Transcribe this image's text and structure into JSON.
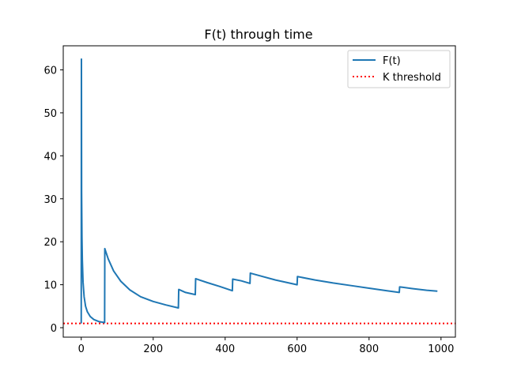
{
  "chart_data": {
    "type": "line",
    "title": "F(t) through time",
    "xlabel": "",
    "ylabel": "",
    "xlim": [
      -50,
      1040
    ],
    "ylim": [
      -2.2,
      65.6
    ],
    "xticks": [
      0,
      200,
      400,
      600,
      800,
      1000
    ],
    "yticks": [
      0,
      10,
      20,
      30,
      40,
      50,
      60
    ],
    "grid": false,
    "legend_position": "top-right",
    "series": [
      {
        "name": "F(t)",
        "color": "#1f77b4",
        "style": "solid",
        "x": [
          0,
          0.5,
          1,
          2,
          3,
          5,
          8,
          12,
          17,
          25,
          35,
          50,
          65,
          65.5,
          75,
          90,
          110,
          135,
          165,
          200,
          235,
          270,
          271,
          290,
          317,
          318,
          350,
          385,
          420,
          421,
          445,
          469,
          470,
          500,
          540,
          600,
          601,
          650,
          700,
          750,
          800,
          850,
          884,
          885,
          920,
          960,
          990
        ],
        "y": [
          1.0,
          62.5,
          31.5,
          21.0,
          15.8,
          10.6,
          7.2,
          5.0,
          3.7,
          2.6,
          1.9,
          1.4,
          1.2,
          18.4,
          16.0,
          13.2,
          10.8,
          8.8,
          7.2,
          6.1,
          5.3,
          4.6,
          8.9,
          8.2,
          7.7,
          11.4,
          10.5,
          9.6,
          8.6,
          11.3,
          10.9,
          10.3,
          12.7,
          12.0,
          11.1,
          10.0,
          11.9,
          11.1,
          10.4,
          9.8,
          9.2,
          8.6,
          8.2,
          9.5,
          9.1,
          8.7,
          8.5
        ]
      },
      {
        "name": "K threshold",
        "color": "#ff0000",
        "style": "dotted",
        "constant_y": 1.0
      }
    ]
  }
}
